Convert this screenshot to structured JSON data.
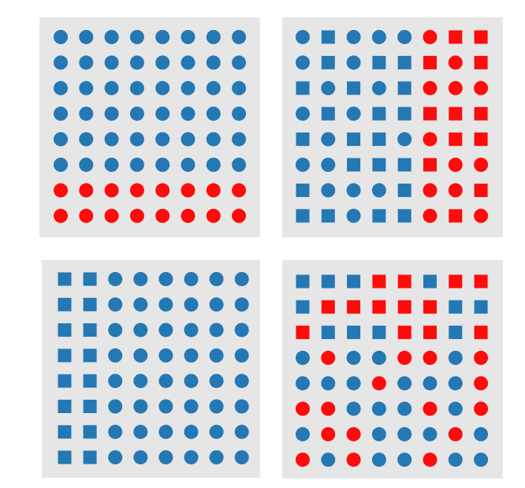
{
  "colors": {
    "blue": "#2478b4",
    "red": "#ff0b0b",
    "panel_background": "#e6e6e6"
  },
  "legend": {
    "c": "circle",
    "s": "square",
    "b": "blue",
    "r": "red"
  },
  "panels": [
    {
      "id": "top-left",
      "rows": [
        [
          "cb",
          "cb",
          "cb",
          "cb",
          "cb",
          "cb",
          "cb",
          "cb"
        ],
        [
          "cb",
          "cb",
          "cb",
          "cb",
          "cb",
          "cb",
          "cb",
          "cb"
        ],
        [
          "cb",
          "cb",
          "cb",
          "cb",
          "cb",
          "cb",
          "cb",
          "cb"
        ],
        [
          "cb",
          "cb",
          "cb",
          "cb",
          "cb",
          "cb",
          "cb",
          "cb"
        ],
        [
          "cb",
          "cb",
          "cb",
          "cb",
          "cb",
          "cb",
          "cb",
          "cb"
        ],
        [
          "cb",
          "cb",
          "cb",
          "cb",
          "cb",
          "cb",
          "cb",
          "cb"
        ],
        [
          "cr",
          "cr",
          "cr",
          "cr",
          "cr",
          "cr",
          "cr",
          "cr"
        ],
        [
          "cr",
          "cr",
          "cr",
          "cr",
          "cr",
          "cr",
          "cr",
          "cr"
        ]
      ]
    },
    {
      "id": "top-right",
      "rows": [
        [
          "cb",
          "sb",
          "cb",
          "cb",
          "cb",
          "cr",
          "sr",
          "sr"
        ],
        [
          "cb",
          "sb",
          "cb",
          "sb",
          "sb",
          "sr",
          "cr",
          "sr"
        ],
        [
          "sb",
          "cb",
          "sb",
          "cb",
          "sb",
          "cr",
          "cr",
          "cr"
        ],
        [
          "cb",
          "sb",
          "cb",
          "sb",
          "sb",
          "sr",
          "sr",
          "sr"
        ],
        [
          "sb",
          "cb",
          "sb",
          "sb",
          "cb",
          "cr",
          "sr",
          "sr"
        ],
        [
          "cb",
          "cb",
          "sb",
          "sb",
          "sb",
          "sr",
          "cr",
          "cr"
        ],
        [
          "sb",
          "cb",
          "cb",
          "cb",
          "sb",
          "cr",
          "cr",
          "sr"
        ],
        [
          "sb",
          "sb",
          "cb",
          "sb",
          "sb",
          "cr",
          "sr",
          "cr"
        ]
      ]
    },
    {
      "id": "bottom-left",
      "rows": [
        [
          "sb",
          "sb",
          "cb",
          "cb",
          "cb",
          "cb",
          "cb",
          "cb"
        ],
        [
          "sb",
          "sb",
          "cb",
          "cb",
          "cb",
          "cb",
          "cb",
          "cb"
        ],
        [
          "sb",
          "sb",
          "cb",
          "cb",
          "cb",
          "cb",
          "cb",
          "cb"
        ],
        [
          "sb",
          "sb",
          "cb",
          "cb",
          "cb",
          "cb",
          "cb",
          "cb"
        ],
        [
          "sb",
          "sb",
          "cb",
          "cb",
          "cb",
          "cb",
          "cb",
          "cb"
        ],
        [
          "sb",
          "sb",
          "cb",
          "cb",
          "cb",
          "cb",
          "cb",
          "cb"
        ],
        [
          "sb",
          "sb",
          "cb",
          "cb",
          "cb",
          "cb",
          "cb",
          "cb"
        ],
        [
          "sb",
          "sb",
          "cb",
          "cb",
          "cb",
          "cb",
          "cb",
          "cb"
        ]
      ]
    },
    {
      "id": "bottom-right",
      "rows": [
        [
          "sb",
          "sb",
          "sb",
          "sr",
          "sr",
          "sb",
          "sr",
          "sr"
        ],
        [
          "sb",
          "sr",
          "sr",
          "sr",
          "sr",
          "sr",
          "sb",
          "sb"
        ],
        [
          "sr",
          "sb",
          "sb",
          "sb",
          "sr",
          "sr",
          "sb",
          "sr"
        ],
        [
          "cb",
          "cr",
          "cb",
          "cb",
          "cr",
          "cr",
          "cb",
          "cr"
        ],
        [
          "cb",
          "cb",
          "cb",
          "cr",
          "cb",
          "cb",
          "cb",
          "cr"
        ],
        [
          "cr",
          "cr",
          "cb",
          "cb",
          "cb",
          "cr",
          "cb",
          "cr"
        ],
        [
          "cb",
          "cr",
          "cr",
          "cb",
          "cb",
          "cb",
          "cr",
          "cb"
        ],
        [
          "cr",
          "cb",
          "cr",
          "cb",
          "cb",
          "cr",
          "cb",
          "cb"
        ]
      ]
    }
  ]
}
